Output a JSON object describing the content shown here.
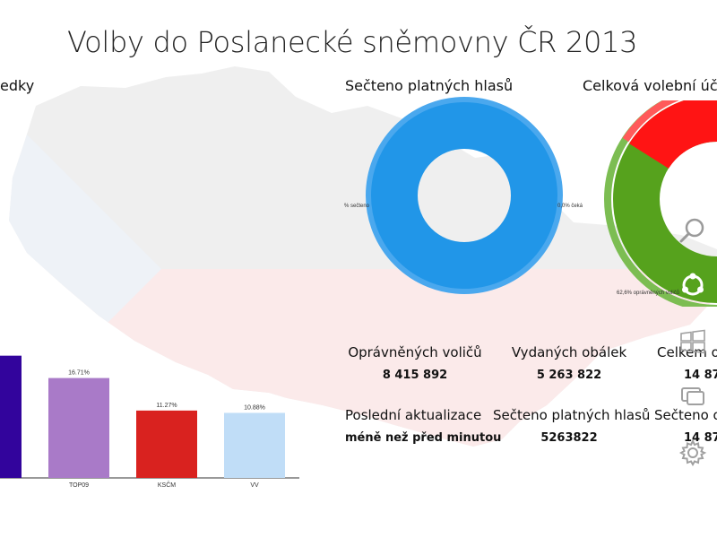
{
  "header": {
    "title": "Volby do Poslanecké sněmovny ČR 2013"
  },
  "sections": {
    "results_title": "edky",
    "counted_title": "Sečteno platných hlasů",
    "turnout_title": "Celková volební účast"
  },
  "colors": {
    "counted_ring": "#2196e8",
    "counted_ring_outer": "#4aa8ee",
    "turnout_green": "#56a21d",
    "turnout_red": "#ff1414",
    "map_tint": "#eeeeee",
    "flag_red_tint": "#fbecec"
  },
  "chart_data": [
    {
      "type": "bar",
      "title": "edky",
      "categories": [
        "",
        "TOP09",
        "KSČM",
        "VV"
      ],
      "values": [
        20.45,
        16.71,
        11.27,
        10.88
      ],
      "value_labels": [
        "",
        "16.71%",
        "11.27%",
        "10.88%"
      ],
      "colors": [
        "#32049c",
        "#a97ac8",
        "#d9221f",
        "#c0ddf7"
      ],
      "ylim": [
        0,
        30
      ]
    },
    {
      "type": "pie",
      "title": "Sečteno platných hlasů",
      "labels": [
        "% sečteno",
        "0,0% čeká"
      ],
      "values": [
        100,
        0
      ]
    },
    {
      "type": "pie",
      "title": "Celková volební účast",
      "labels": [
        "62,6% oprávněných voličů",
        ""
      ],
      "values": [
        62.6,
        37.4
      ]
    }
  ],
  "stats": [
    {
      "label": "Oprávněných voličů",
      "value": "8 415 892"
    },
    {
      "label": "Vydaných obálek",
      "value": "5 263 822"
    },
    {
      "label": "Celkem o",
      "value": "14 87"
    },
    {
      "label": "Poslední aktualizace",
      "value": "méně než před minutou"
    },
    {
      "label": "Sečteno platných hlasů",
      "value": "5263822"
    },
    {
      "label": "Sečteno o",
      "value": "14 87"
    }
  ],
  "charms": [
    {
      "name": "search-charm",
      "icon": "search-icon"
    },
    {
      "name": "share-charm",
      "icon": "share-icon"
    },
    {
      "name": "start-charm",
      "icon": "windows-logo-icon"
    },
    {
      "name": "devices-charm",
      "icon": "devices-icon"
    },
    {
      "name": "settings-charm",
      "icon": "gear-icon"
    }
  ]
}
